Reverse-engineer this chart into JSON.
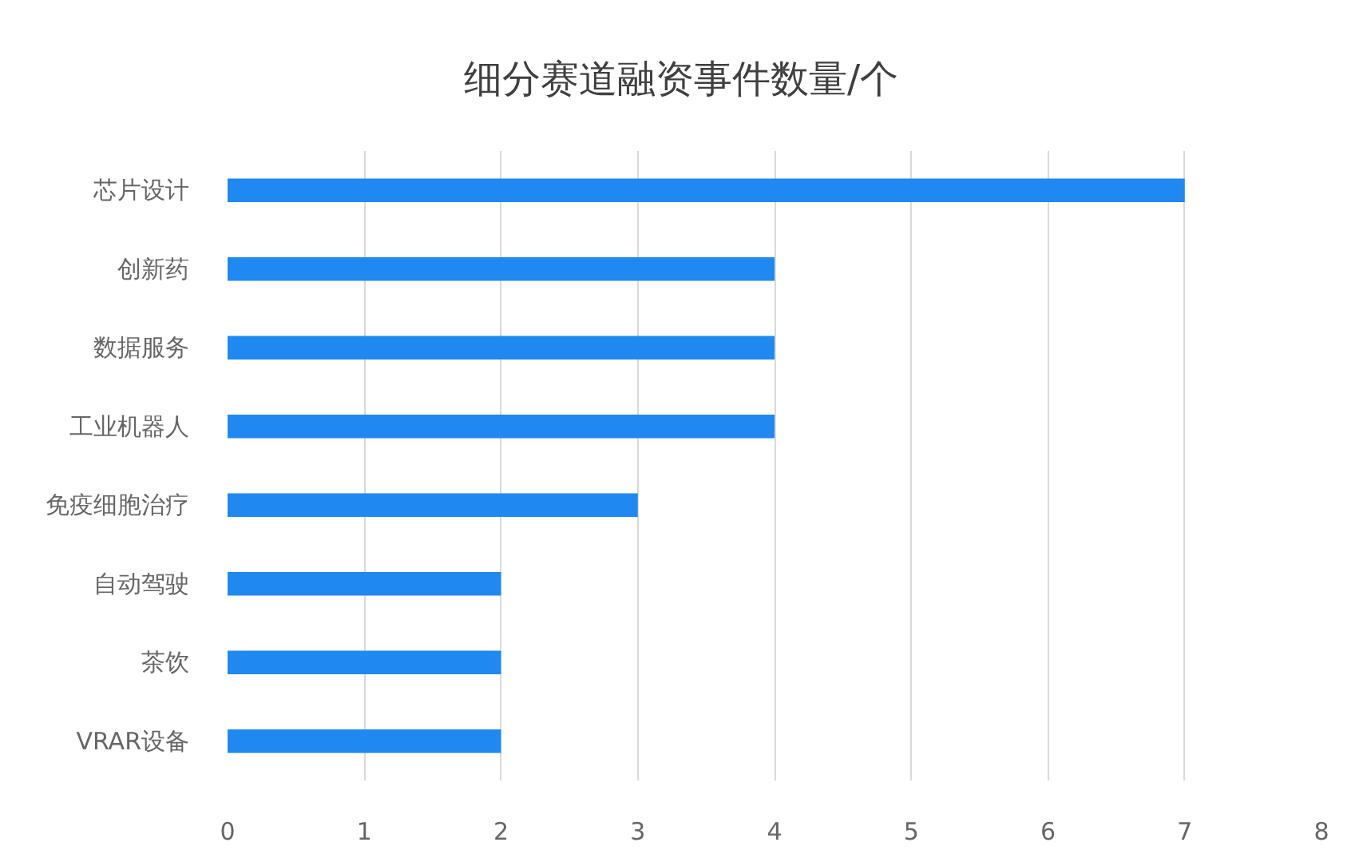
{
  "chart_data": {
    "type": "bar",
    "orientation": "horizontal",
    "title": "细分赛道融资事件数量/个",
    "categories": [
      "芯片设计",
      "创新药",
      "数据服务",
      "工业机器人",
      "免疫细胞治疗",
      "自动驾驶",
      "茶饮",
      "VRAR设备"
    ],
    "values": [
      7,
      4,
      4,
      4,
      3,
      2,
      2,
      2
    ],
    "color": "#1f88f1",
    "xlim": [
      0,
      8
    ],
    "xticks": [
      0,
      1,
      2,
      3,
      4,
      5,
      6,
      7,
      8
    ],
    "grid": "x"
  }
}
